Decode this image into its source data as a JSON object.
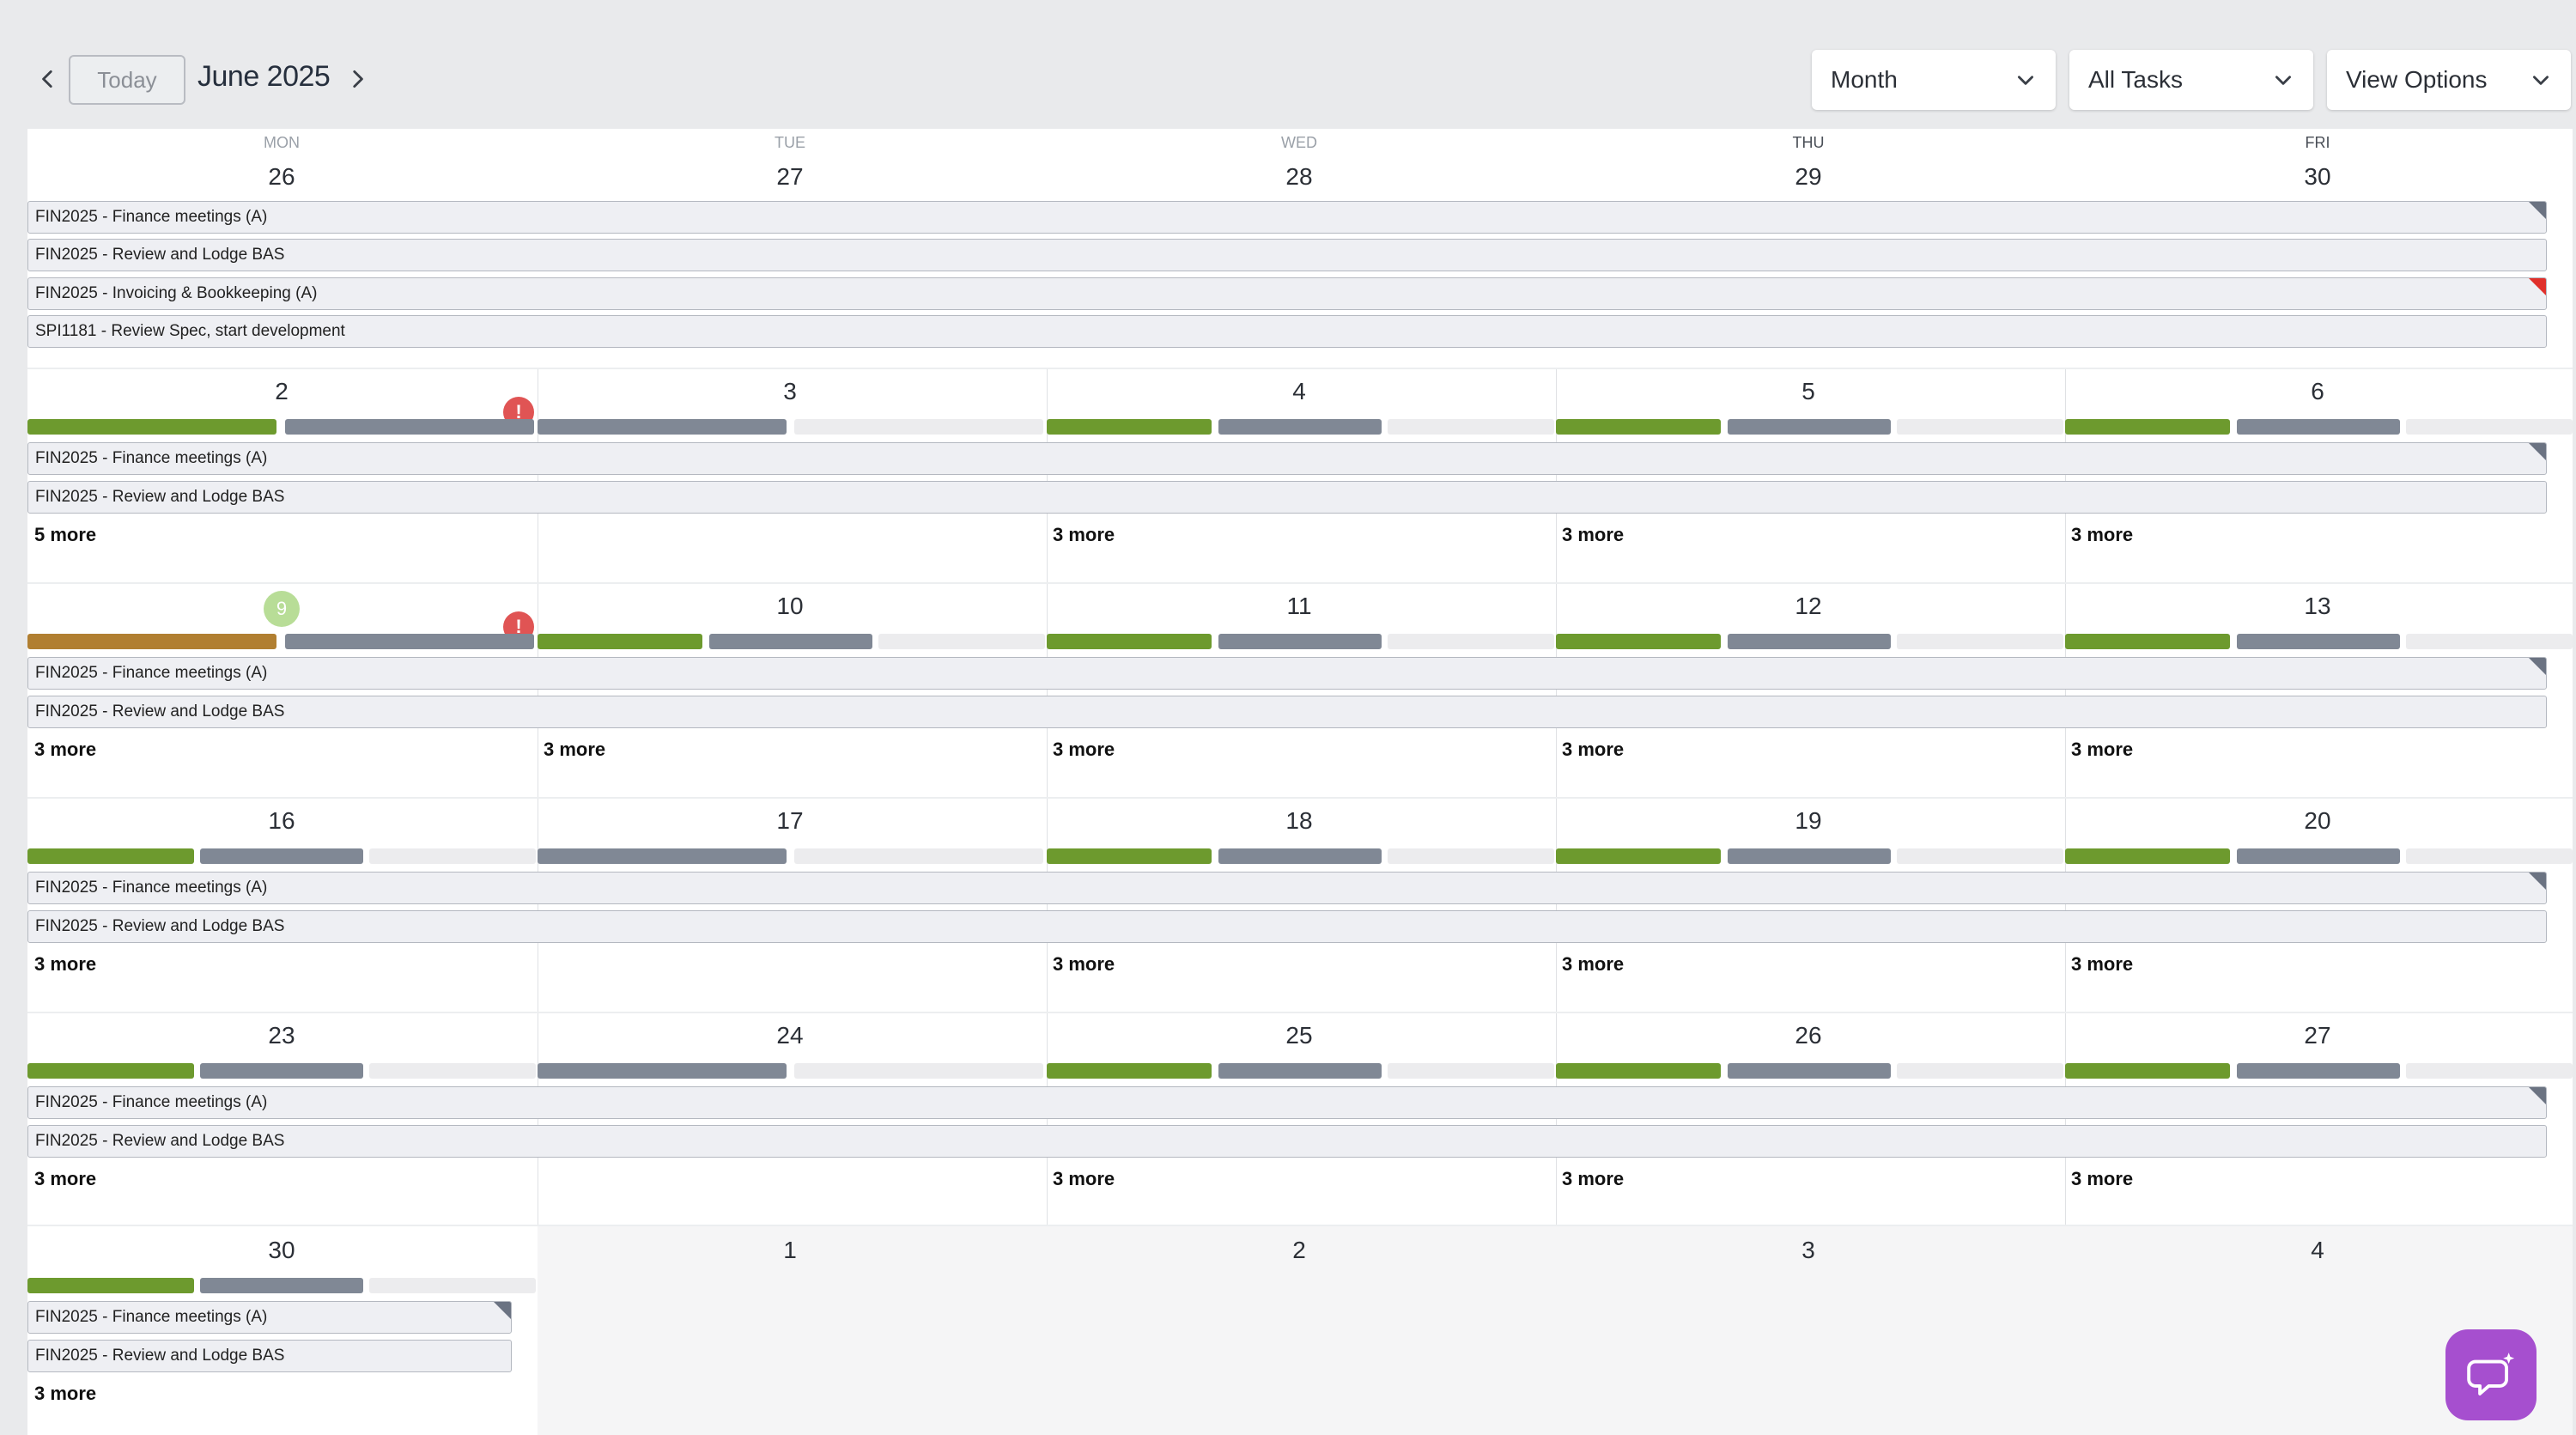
{
  "header": {
    "today_label": "Today",
    "month_title": "June 2025",
    "view_select": "Month",
    "filter_select": "All Tasks",
    "options_select": "View Options"
  },
  "weekdays": [
    "MON",
    "TUE",
    "WED",
    "THU",
    "FRI"
  ],
  "weeks": [
    {
      "days": [
        "26",
        "27",
        "28",
        "29",
        "30"
      ]
    },
    {
      "days": [
        "2",
        "3",
        "4",
        "5",
        "6"
      ]
    },
    {
      "days": [
        "9",
        "10",
        "11",
        "12",
        "13"
      ]
    },
    {
      "days": [
        "16",
        "17",
        "18",
        "19",
        "20"
      ]
    },
    {
      "days": [
        "23",
        "24",
        "25",
        "26",
        "27"
      ]
    },
    {
      "days": [
        "30",
        "1",
        "2",
        "3",
        "4"
      ]
    }
  ],
  "events": {
    "finance": "FIN2025 - Finance meetings (A)",
    "bas": "FIN2025 - Review and Lodge BAS",
    "invoicing": "FIN2025 - Invoicing & Bookkeeping (A)",
    "spi": "SPI1181 - Review Spec, start development"
  },
  "more": {
    "five": "5 more",
    "three": "3 more"
  },
  "alert_symbol": "!",
  "colors": {
    "green": "#6d9a2e",
    "gray": "#808895",
    "orange": "#b17f31",
    "alert": "#e05454",
    "chat": "#a64fcf"
  },
  "icons": {
    "prev": "chevron-left-icon",
    "next": "chevron-right-icon",
    "dropdown": "chevron-down-icon",
    "chat": "chat-bubble-icon"
  }
}
